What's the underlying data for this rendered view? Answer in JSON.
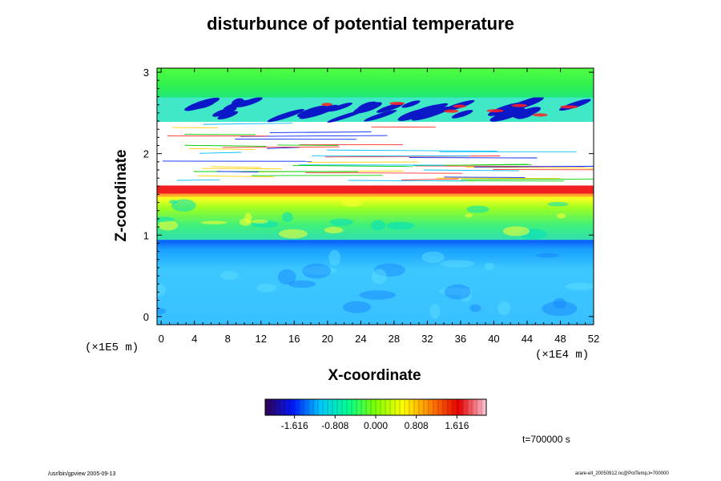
{
  "chart_data": {
    "type": "heatmap",
    "title": "disturbunce of potential temperature",
    "xlabel": "X-coordinate",
    "ylabel": "Z-coordinate",
    "x_unit": "(×1E4 m)",
    "y_unit": "(×1E5 m)",
    "xlim": [
      -0.5,
      52
    ],
    "ylim": [
      -0.1,
      3.05
    ],
    "x_ticks": [
      "0",
      "4",
      "8",
      "12",
      "16",
      "20",
      "24",
      "28",
      "32",
      "36",
      "40",
      "44",
      "48",
      "52"
    ],
    "y_ticks": [
      "0",
      "1",
      "2",
      "3"
    ],
    "colorbar": {
      "tick_labels": [
        "-1.616",
        "-0.808",
        "0.000",
        "0.808",
        "1.616"
      ],
      "range": [
        -2.2,
        2.2
      ],
      "colormap": [
        "#320050",
        "#0018ff",
        "#00c8ff",
        "#00ff90",
        "#80ff00",
        "#ffff00",
        "#ff8000",
        "#e80000",
        "#ffc8d8"
      ]
    },
    "bands": [
      {
        "z": [
          -0.1,
          0.95
        ],
        "value": -1.0,
        "description": "cold layer, blue/cyan"
      },
      {
        "z": [
          0.95,
          1.55
        ],
        "value": 0.3,
        "description": "near-neutral green with yellow patches"
      },
      {
        "z": [
          1.55,
          1.6
        ],
        "value": 1.6,
        "description": "warm red front"
      },
      {
        "z": [
          1.6,
          2.4
        ],
        "value": null,
        "description": "out of range, white with thin streaks"
      },
      {
        "z": [
          2.4,
          2.7
        ],
        "value": -1.4,
        "description": "dark blue waves with red accents"
      },
      {
        "z": [
          2.7,
          3.05
        ],
        "value": 0.2,
        "description": "green"
      }
    ]
  },
  "annotations": {
    "time": "t=700000 s",
    "footer_left": "/usr/bin/gpview 2005-09-13",
    "footer_right": "arare-ell_20050912.nc@PotTemp,t=700000"
  },
  "colors": {
    "axis": "#000000",
    "background": "#ffffff"
  }
}
